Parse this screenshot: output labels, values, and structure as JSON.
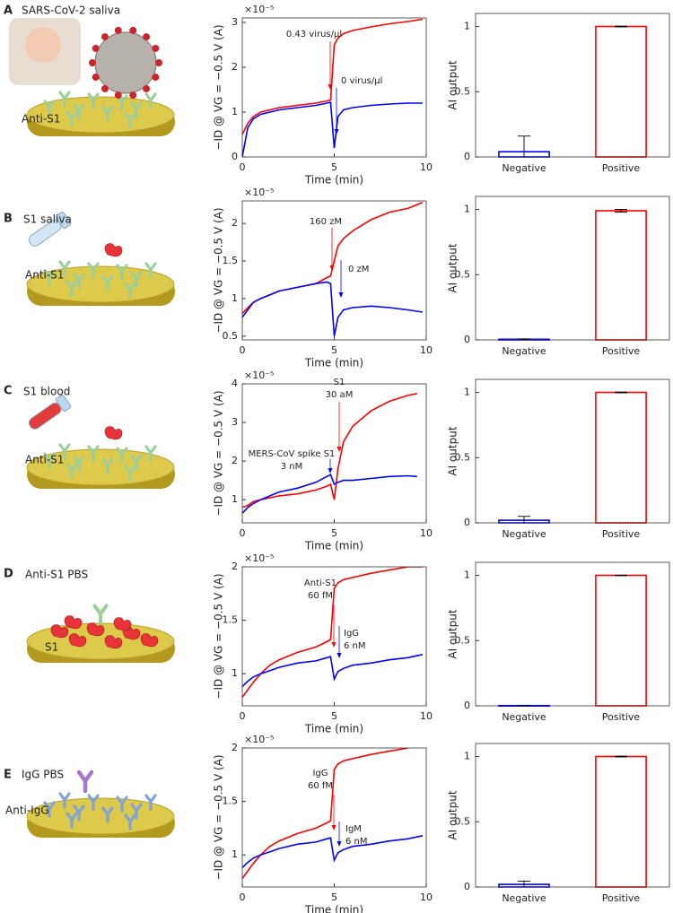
{
  "panels": [
    {
      "letter": "A",
      "sample": "SARS-CoV-2 saliva",
      "surface": "Anti-S1"
    },
    {
      "letter": "B",
      "sample": "S1 saliva",
      "surface": "Anti-S1"
    },
    {
      "letter": "C",
      "sample": "S1 blood",
      "surface": "Anti-S1"
    },
    {
      "letter": "D",
      "sample": "Anti-S1 PBS",
      "surface": "S1"
    },
    {
      "letter": "E",
      "sample": "IgG PBS",
      "surface": "Anti-IgG"
    }
  ],
  "chart_data": [
    {
      "type": "line",
      "ylabel": "−ID @ VG = −0.5 V (A)",
      "xlabel": "Time (min)",
      "y_multiplier": "×10⁻⁵",
      "xlim": [
        0,
        10
      ],
      "xticks": [
        0,
        5,
        10
      ],
      "ylim": [
        0,
        3.1
      ],
      "yticks": [
        0,
        1,
        2,
        3
      ],
      "x": [
        0,
        0.3,
        0.6,
        1,
        1.5,
        2,
        3,
        4,
        4.6,
        4.8,
        5,
        5.2,
        5.5,
        6,
        7,
        8,
        9,
        9.8
      ],
      "series": [
        {
          "color": "#ff0000",
          "values": [
            0.5,
            0.75,
            0.9,
            1.0,
            1.05,
            1.1,
            1.15,
            1.2,
            1.25,
            1.27,
            2.5,
            2.65,
            2.75,
            2.82,
            2.9,
            2.97,
            3.02,
            3.07
          ]
        },
        {
          "color": "#0000ff",
          "values": [
            0,
            0.65,
            0.85,
            0.95,
            1.0,
            1.05,
            1.1,
            1.15,
            1.2,
            1.22,
            0.2,
            0.9,
            1.05,
            1.1,
            1.15,
            1.18,
            1.2,
            1.2
          ]
        }
      ],
      "annotations": [
        {
          "lines": [
            "0.43 virus/µl"
          ],
          "color": "#ff0000"
        },
        {
          "lines": [
            "0 virus/µl"
          ],
          "color": "#0000ff"
        }
      ]
    },
    {
      "type": "bar",
      "ylabel": "AI output",
      "categories": [
        "Negative",
        "Positive"
      ],
      "values": [
        0.04,
        1.0
      ],
      "errors": [
        0.12,
        0.003
      ],
      "colors": [
        "#0000ff",
        "#ff0000"
      ],
      "ylim": [
        0,
        1.1
      ],
      "yticks": [
        0,
        0.5,
        1
      ]
    },
    {
      "type": "line",
      "ylabel": "−ID @ VG = −0.5 V (A)",
      "xlabel": "Time (min)",
      "y_multiplier": "×10⁻⁵",
      "xlim": [
        0,
        10
      ],
      "xticks": [
        0,
        5,
        10
      ],
      "ylim": [
        0.45,
        2.3
      ],
      "yticks": [
        0.5,
        1,
        1.5,
        2
      ],
      "x": [
        0,
        0.3,
        0.6,
        1,
        1.5,
        2,
        3,
        4,
        4.6,
        4.8,
        5,
        5.2,
        5.5,
        6,
        7,
        8,
        9,
        9.8
      ],
      "series": [
        {
          "color": "#ff0000",
          "values": [
            0.8,
            0.88,
            0.95,
            1.0,
            1.05,
            1.1,
            1.15,
            1.2,
            1.28,
            1.3,
            1.5,
            1.7,
            1.8,
            1.9,
            2.05,
            2.15,
            2.2,
            2.28
          ]
        },
        {
          "color": "#0000ff",
          "values": [
            0.75,
            0.85,
            0.95,
            1.0,
            1.05,
            1.1,
            1.15,
            1.2,
            1.22,
            1.2,
            0.5,
            0.75,
            0.85,
            0.88,
            0.9,
            0.88,
            0.85,
            0.82
          ]
        }
      ],
      "annotations": [
        {
          "lines": [
            "160 zM"
          ],
          "color": "#ff0000"
        },
        {
          "lines": [
            "0 zM"
          ],
          "color": "#0000ff"
        }
      ]
    },
    {
      "type": "bar",
      "ylabel": "AI output",
      "categories": [
        "Negative",
        "Positive"
      ],
      "values": [
        0.005,
        0.99
      ],
      "errors": [
        0.003,
        0.01
      ],
      "colors": [
        "#0000ff",
        "#ff0000"
      ],
      "ylim": [
        0,
        1.1
      ],
      "yticks": [
        0,
        0.5,
        1
      ]
    },
    {
      "type": "line",
      "ylabel": "−ID @ VG = −0.5 V (A)",
      "xlabel": "Time (min)",
      "y_multiplier": "×10⁻⁵",
      "xlim": [
        0,
        10
      ],
      "xticks": [
        0,
        5,
        10
      ],
      "ylim": [
        0.4,
        4
      ],
      "yticks": [
        1,
        2,
        3,
        4
      ],
      "x": [
        0,
        0.3,
        0.6,
        1,
        1.5,
        2,
        3,
        4,
        4.6,
        4.8,
        5,
        5.2,
        5.5,
        6,
        7,
        8,
        9,
        9.5
      ],
      "series": [
        {
          "color": "#ff0000",
          "values": [
            0.8,
            0.85,
            0.95,
            1.0,
            1.05,
            1.1,
            1.15,
            1.25,
            1.35,
            1.4,
            1.0,
            1.8,
            2.5,
            2.9,
            3.3,
            3.55,
            3.7,
            3.75
          ]
        },
        {
          "color": "#0000ff",
          "values": [
            0.65,
            0.8,
            0.9,
            1.0,
            1.1,
            1.2,
            1.3,
            1.45,
            1.6,
            1.65,
            1.4,
            1.45,
            1.5,
            1.5,
            1.55,
            1.6,
            1.62,
            1.6
          ]
        }
      ],
      "annotations": [
        {
          "lines": [
            "S1",
            "30 aM"
          ],
          "color": "#ff0000"
        },
        {
          "lines": [
            "MERS-CoV spike S1",
            "3 nM"
          ],
          "color": "#0000ff"
        }
      ]
    },
    {
      "type": "bar",
      "ylabel": "AI output",
      "categories": [
        "Negative",
        "Positive"
      ],
      "values": [
        0.02,
        1.0
      ],
      "errors": [
        0.03,
        0.003
      ],
      "colors": [
        "#0000ff",
        "#ff0000"
      ],
      "ylim": [
        0,
        1.1
      ],
      "yticks": [
        0,
        0.5,
        1
      ]
    },
    {
      "type": "line",
      "ylabel": "−ID @ VG = −0.5 V (A)",
      "xlabel": "Time (min)",
      "y_multiplier": "×10⁻⁵",
      "xlim": [
        0,
        10
      ],
      "xticks": [
        0,
        5,
        10
      ],
      "ylim": [
        0.7,
        2
      ],
      "yticks": [
        1,
        1.5,
        2
      ],
      "x": [
        0,
        0.3,
        0.6,
        1,
        1.5,
        2,
        3,
        4,
        4.6,
        4.8,
        5,
        5.2,
        5.5,
        6,
        7,
        8,
        9,
        9.8
      ],
      "series": [
        {
          "color": "#ff0000",
          "values": [
            0.78,
            0.85,
            0.92,
            1.0,
            1.08,
            1.13,
            1.2,
            1.25,
            1.3,
            1.32,
            1.8,
            1.85,
            1.88,
            1.9,
            1.94,
            1.97,
            2.0,
            2.0
          ]
        },
        {
          "color": "#0000ff",
          "values": [
            0.88,
            0.93,
            0.97,
            1.0,
            1.03,
            1.06,
            1.1,
            1.12,
            1.15,
            1.16,
            0.95,
            1.02,
            1.05,
            1.08,
            1.1,
            1.13,
            1.15,
            1.18
          ]
        }
      ],
      "annotations": [
        {
          "lines": [
            "Anti-S1",
            "60 fM"
          ],
          "color": "#ff0000"
        },
        {
          "lines": [
            "IgG",
            "6 nM"
          ],
          "color": "#0000ff"
        }
      ]
    },
    {
      "type": "bar",
      "ylabel": "AI output",
      "categories": [
        "Negative",
        "Positive"
      ],
      "values": [
        0.002,
        1.0
      ],
      "errors": [
        0.002,
        0.002
      ],
      "colors": [
        "#0000ff",
        "#ff0000"
      ],
      "ylim": [
        0,
        1.1
      ],
      "yticks": [
        0,
        0.5,
        1
      ]
    },
    {
      "type": "line",
      "ylabel": "−ID @ VG = −0.5 V (A)",
      "xlabel": "Time (min)",
      "y_multiplier": "×10⁻⁵",
      "xlim": [
        0,
        10
      ],
      "xticks": [
        0,
        5,
        10
      ],
      "ylim": [
        0.7,
        2
      ],
      "yticks": [
        1,
        1.5,
        2
      ],
      "x": [
        0,
        0.3,
        0.6,
        1,
        1.5,
        2,
        3,
        4,
        4.6,
        4.8,
        5,
        5.2,
        5.5,
        6,
        7,
        8,
        9,
        9.8
      ],
      "series": [
        {
          "color": "#ff0000",
          "values": [
            0.78,
            0.85,
            0.92,
            1.0,
            1.08,
            1.13,
            1.2,
            1.25,
            1.3,
            1.32,
            1.8,
            1.85,
            1.88,
            1.9,
            1.94,
            1.97,
            2.0,
            null
          ]
        },
        {
          "color": "#0000ff",
          "values": [
            0.88,
            0.93,
            0.97,
            1.0,
            1.03,
            1.06,
            1.1,
            1.12,
            1.15,
            1.16,
            0.95,
            1.02,
            1.05,
            1.08,
            1.1,
            1.13,
            1.15,
            1.18
          ]
        }
      ],
      "annotations": [
        {
          "lines": [
            "IgG",
            "60 fM"
          ],
          "color": "#ff0000"
        },
        {
          "lines": [
            "IgM",
            "6 nM"
          ],
          "color": "#0000ff"
        }
      ]
    },
    {
      "type": "bar",
      "ylabel": "AI output",
      "categories": [
        "Negative",
        "Positive"
      ],
      "values": [
        0.02,
        1.0
      ],
      "errors": [
        0.025,
        0.003
      ],
      "colors": [
        "#0000ff",
        "#ff0000"
      ],
      "ylim": [
        0,
        1.1
      ],
      "yticks": [
        0,
        0.5,
        1
      ]
    }
  ]
}
